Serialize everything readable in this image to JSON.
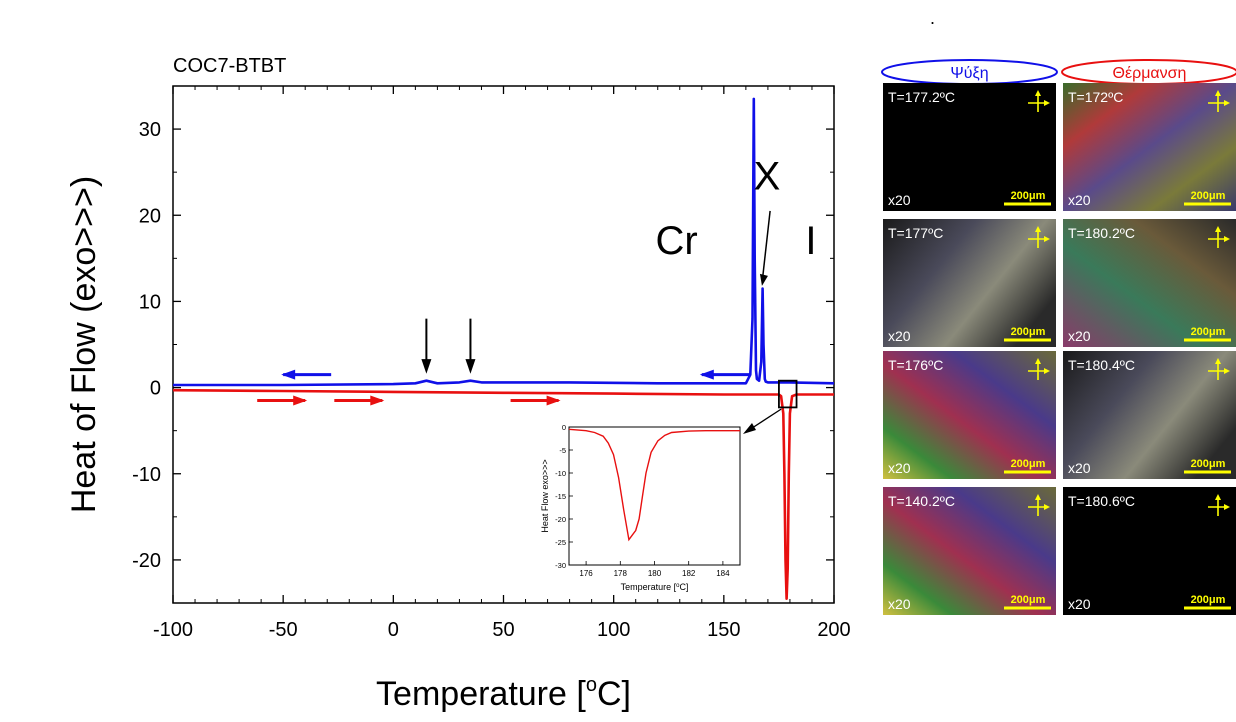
{
  "stray_mark": ".",
  "chart_data": [
    {
      "type": "line",
      "title": "COC7-BTBT",
      "xlabel": "Temperature [",
      "xlabel_degree": "o",
      "xlabel_unit": "C]",
      "ylabel": "Heat of Flow (exo>>>)",
      "xlim": [
        -100,
        200
      ],
      "ylim": [
        -25,
        35
      ],
      "xticks": [
        -100,
        -50,
        0,
        50,
        100,
        150,
        200
      ],
      "xtick_labels": [
        "-100",
        "-50",
        "0",
        "50",
        "100",
        "150",
        "200"
      ],
      "yticks": [
        -20,
        -10,
        0,
        10,
        20,
        30
      ],
      "ytick_labels": [
        "-20",
        "-10",
        "0",
        "10",
        "20",
        "30"
      ],
      "annotations": {
        "cr": "Cr",
        "x": "X",
        "i": "I"
      },
      "colors": {
        "cooling": "#1010e8",
        "heating": "#e81010",
        "arrow": "#000000"
      },
      "series": [
        {
          "x": [
            -100,
            -50,
            0,
            10,
            15,
            20,
            30,
            35,
            40,
            80,
            120,
            150,
            160,
            162,
            163,
            163.6,
            164,
            164.6,
            165,
            166,
            167,
            167.6,
            168,
            168.6,
            169,
            170,
            180,
            200
          ],
          "values": [
            0.3,
            0.3,
            0.4,
            0.5,
            0.8,
            0.5,
            0.6,
            0.8,
            0.6,
            0.6,
            0.5,
            0.5,
            0.5,
            1.5,
            8,
            33.5,
            15,
            2,
            1,
            0.8,
            3,
            11.5,
            5,
            1,
            0.7,
            0.6,
            0.6,
            0.5
          ]
        },
        {
          "x": [
            -100,
            -50,
            0,
            50,
            100,
            150,
            175,
            176,
            177,
            177.5,
            178,
            178.5,
            179,
            179.5,
            180,
            181,
            183,
            200
          ],
          "values": [
            -0.3,
            -0.4,
            -0.5,
            -0.6,
            -0.7,
            -0.8,
            -0.8,
            -1,
            -3,
            -10,
            -20,
            -24.5,
            -21,
            -10,
            -3,
            -1,
            -0.8,
            -0.8
          ]
        }
      ],
      "heating_arrows_at": [
        -40,
        -5,
        75
      ],
      "cooling_arrows_at": [
        -50,
        140
      ],
      "cooling_arrow_label_positions": [
        15,
        35
      ],
      "highlight_box": {
        "x": [
          175,
          183
        ],
        "y": [
          -2.3,
          0.8
        ]
      }
    },
    {
      "type": "line",
      "xlabel": "Temperature [",
      "xlabel_degree": "o",
      "xlabel_unit": "C]",
      "ylabel": "Heat Flow exo>>>",
      "xlim": [
        175,
        185
      ],
      "ylim": [
        -30,
        0
      ],
      "xtick_labels": [
        "176",
        "178",
        "180",
        "182",
        "184"
      ],
      "xticks": [
        176,
        178,
        180,
        182,
        184
      ],
      "ytick_labels": [
        "0",
        "-5",
        "-10",
        "-15",
        "-20",
        "-25",
        "-30"
      ],
      "yticks": [
        0,
        -5,
        -10,
        -15,
        -20,
        -25,
        -30
      ],
      "series": [
        {
          "x": [
            175,
            176,
            176.5,
            177,
            177.3,
            177.6,
            177.9,
            178.2,
            178.5,
            178.7,
            178.9,
            179.1,
            179.3,
            179.5,
            179.8,
            180.2,
            180.6,
            181,
            182,
            183,
            184,
            185
          ],
          "values": [
            -0.5,
            -0.8,
            -1.2,
            -2,
            -3.5,
            -6,
            -11,
            -18,
            -24.5,
            -23.5,
            -22.5,
            -20,
            -15,
            -10,
            -5.5,
            -3,
            -1.8,
            -1.2,
            -0.9,
            -0.8,
            -0.8,
            -0.8
          ]
        }
      ]
    }
  ],
  "micrographs": {
    "cooling_header": "Ψύξη",
    "heating_header": "Θέρμανση",
    "cooling_color": "#1010e8",
    "heating_color": "#e81010",
    "magnification": "x20",
    "scale_label": "200μm",
    "scale_color": "#ffff00",
    "rows": [
      {
        "cooling": "T=177.2ºC",
        "heating": "T=172ºC"
      },
      {
        "cooling": "T=177ºC",
        "heating": "T=180.2ºC"
      },
      {
        "cooling": "T=176ºC",
        "heating": "T=180.4ºC"
      },
      {
        "cooling": "T=140.2ºC",
        "heating": "T=180.6ºC"
      }
    ]
  }
}
